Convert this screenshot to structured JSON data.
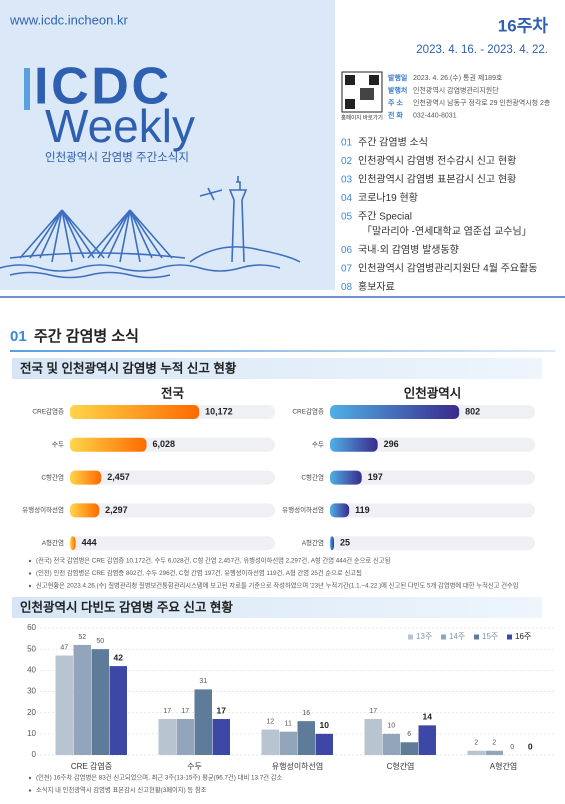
{
  "header": {
    "url": "www.icdc.incheon.kr",
    "week": "16주차",
    "dates": "2023. 4. 16. - 2023. 4. 22.",
    "logo_top": "ICDC",
    "logo_bottom": "Weekly",
    "subtitle": "인천광역시 감염병 주간소식지",
    "qr_caption": "홈페이지 바로가기",
    "publish": [
      {
        "label": "발행일",
        "text": "2023. 4. 26.(수) 통권 제189호"
      },
      {
        "label": "발행처",
        "text": "인천광역시 감염병관리지원단"
      },
      {
        "label": "주 소",
        "text": "인천광역시 남동구 정각로 29 인천광역시청 2층"
      },
      {
        "label": "전 화",
        "text": "032-440-8031"
      }
    ]
  },
  "toc": [
    {
      "num": "01",
      "text": "주간 감염병 소식"
    },
    {
      "num": "02",
      "text": "인천광역시 감염병 전수감시 신고 현황"
    },
    {
      "num": "03",
      "text": "인천광역시 감염병 표본감시 신고 현황"
    },
    {
      "num": "04",
      "text": "코로나19 현황"
    },
    {
      "num": "05",
      "text": "주간 Special",
      "sub": "「말라리아 -연세대학교 염준섭 교수님」"
    },
    {
      "num": "06",
      "text": "국내·외 감염병 발생동향"
    },
    {
      "num": "07",
      "text": "인천광역시 감염병관리지원단 4월 주요활동"
    },
    {
      "num": "08",
      "text": "홍보자료"
    }
  ],
  "section": {
    "num": "01",
    "title": "주간 감염병 소식"
  },
  "cumulative_heading": "전국 및 인천광역시 감염병 누적 신고 현황",
  "cumulative_notes": [
    "(전국) 전국 감염병은 CRE 감염증 10,172건, 수두 6,028건, C형 간염 2,457건, 유행성이하선염 2,297건, A형 간염 444건 순으로 신고됨",
    "(인천) 인천 감염병은 CRE 감염증 802건, 수두 296건, C형 간염 197건, 유행성이하선염 119건, A형 간염 25건 순으로 신고됨",
    "신고현황은 2023.4.26.(수) 질병관리청 질병보건통합관리시스템에 보고된 자료를 기준으로 작성하였으며 '23년 누적기간(1.1.~4.22.)에 신고된 다빈도 5개 감염병에 대한 누적신고 건수임"
  ],
  "weekly_notes": [
    "(인천) 16주차 감염병은 83건 신고되었으며, 최근 3주(13-15주) 평균(96.7건) 대비 13.7건 감소",
    "소식지 내 인천광역시 감염병 표본감시 신고현황(3페이지) 등 참조"
  ],
  "chart_data": [
    {
      "type": "hbar",
      "title": "전국",
      "categories": [
        "CRE감염증",
        "수두",
        "C형간염",
        "유행성이하선염",
        "A형간염"
      ],
      "values": [
        10172,
        6028,
        2457,
        2297,
        444
      ],
      "value_labels": [
        "10,172",
        "6,028",
        "2,457",
        "2,297",
        "444"
      ],
      "gradient": [
        "#ffd54a",
        "#ff6a00"
      ]
    },
    {
      "type": "hbar",
      "title": "인천광역시",
      "categories": [
        "CRE감염증",
        "수두",
        "C형간염",
        "유행성이하선염",
        "A형간염"
      ],
      "values": [
        802,
        296,
        197,
        119,
        25
      ],
      "gradient": [
        "#4fb0e6",
        "#3a2a8c"
      ]
    },
    {
      "type": "bar",
      "title": "인천광역시 다빈도 감염병 주요 신고 현황",
      "categories": [
        "CRE 감염증",
        "수두",
        "유행성이하선염",
        "C형간염",
        "A형간염"
      ],
      "series": [
        {
          "name": "13주",
          "color": "#b9c4d1",
          "values": [
            47,
            17,
            12,
            17,
            2
          ]
        },
        {
          "name": "14주",
          "color": "#92a5ba",
          "values": [
            52,
            17,
            11,
            10,
            2
          ]
        },
        {
          "name": "15주",
          "color": "#5e7c99",
          "values": [
            50,
            31,
            16,
            6,
            0
          ]
        },
        {
          "name": "16주",
          "color": "#3c47a6",
          "values": [
            42,
            17,
            10,
            14,
            0
          ]
        }
      ],
      "ylim": [
        0,
        60
      ],
      "yticks": [
        0,
        10,
        20,
        30,
        40,
        50,
        60
      ],
      "grid": true,
      "legend": "top-right"
    }
  ]
}
